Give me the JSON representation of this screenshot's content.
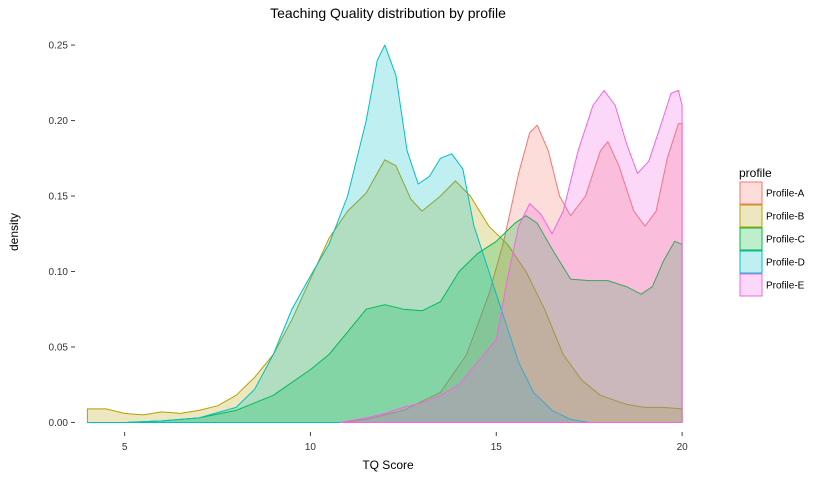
{
  "chart_data": {
    "type": "area",
    "title": "Teaching Quality distribution by profile",
    "xlabel": "TQ Score",
    "ylabel": "density",
    "xlim": [
      3.8,
      20.4
    ],
    "ylim": [
      -0.005,
      0.26
    ],
    "xticks": [
      5,
      10,
      15,
      20
    ],
    "yticks": [
      0.0,
      0.05,
      0.1,
      0.15,
      0.2,
      0.25
    ],
    "ytick_labels": [
      "0.00",
      "0.05",
      "0.10",
      "0.15",
      "0.20",
      "0.25"
    ],
    "grid": false,
    "legend": {
      "title": "profile",
      "placement": "right"
    },
    "series": [
      {
        "name": "Profile-A",
        "fill": "#F8766D",
        "stroke": "#F8766D",
        "points": [
          [
            10.8,
            0.0
          ],
          [
            11.5,
            0.002
          ],
          [
            12.5,
            0.008
          ],
          [
            13.5,
            0.02
          ],
          [
            14.2,
            0.045
          ],
          [
            14.8,
            0.085
          ],
          [
            15.2,
            0.12
          ],
          [
            15.6,
            0.165
          ],
          [
            15.9,
            0.192
          ],
          [
            16.1,
            0.197
          ],
          [
            16.4,
            0.18
          ],
          [
            16.7,
            0.15
          ],
          [
            17.0,
            0.137
          ],
          [
            17.4,
            0.15
          ],
          [
            17.8,
            0.18
          ],
          [
            18.0,
            0.186
          ],
          [
            18.3,
            0.17
          ],
          [
            18.7,
            0.14
          ],
          [
            19.0,
            0.13
          ],
          [
            19.3,
            0.14
          ],
          [
            19.6,
            0.175
          ],
          [
            19.9,
            0.198
          ],
          [
            20.0,
            0.198
          ],
          [
            20.0,
            0.0
          ]
        ]
      },
      {
        "name": "Profile-B",
        "fill": "#B79F00",
        "stroke": "#B79F00",
        "points": [
          [
            4.0,
            0.009
          ],
          [
            4.5,
            0.009
          ],
          [
            5.0,
            0.006
          ],
          [
            5.5,
            0.005
          ],
          [
            6.0,
            0.007
          ],
          [
            6.5,
            0.006
          ],
          [
            7.0,
            0.008
          ],
          [
            7.5,
            0.011
          ],
          [
            8.0,
            0.018
          ],
          [
            8.5,
            0.03
          ],
          [
            9.0,
            0.045
          ],
          [
            9.5,
            0.068
          ],
          [
            10.0,
            0.095
          ],
          [
            10.5,
            0.122
          ],
          [
            11.0,
            0.14
          ],
          [
            11.5,
            0.152
          ],
          [
            12.0,
            0.174
          ],
          [
            12.3,
            0.17
          ],
          [
            12.7,
            0.148
          ],
          [
            13.0,
            0.14
          ],
          [
            13.5,
            0.15
          ],
          [
            13.9,
            0.16
          ],
          [
            14.3,
            0.15
          ],
          [
            14.8,
            0.13
          ],
          [
            15.3,
            0.118
          ],
          [
            15.8,
            0.1
          ],
          [
            16.3,
            0.075
          ],
          [
            16.8,
            0.045
          ],
          [
            17.3,
            0.028
          ],
          [
            17.8,
            0.018
          ],
          [
            18.5,
            0.012
          ],
          [
            19.0,
            0.01
          ],
          [
            19.5,
            0.01
          ],
          [
            20.0,
            0.009
          ],
          [
            20.0,
            0.0
          ],
          [
            4.0,
            0.0
          ]
        ]
      },
      {
        "name": "Profile-C",
        "fill": "#00BA38",
        "stroke": "#00BA38",
        "points": [
          [
            5.0,
            0.0
          ],
          [
            6.0,
            0.001
          ],
          [
            7.0,
            0.003
          ],
          [
            8.0,
            0.008
          ],
          [
            9.0,
            0.018
          ],
          [
            10.0,
            0.035
          ],
          [
            10.5,
            0.045
          ],
          [
            11.0,
            0.06
          ],
          [
            11.5,
            0.075
          ],
          [
            12.0,
            0.078
          ],
          [
            12.5,
            0.075
          ],
          [
            13.0,
            0.074
          ],
          [
            13.5,
            0.08
          ],
          [
            14.0,
            0.1
          ],
          [
            14.5,
            0.112
          ],
          [
            15.0,
            0.12
          ],
          [
            15.5,
            0.132
          ],
          [
            15.8,
            0.137
          ],
          [
            16.1,
            0.132
          ],
          [
            16.5,
            0.115
          ],
          [
            17.0,
            0.095
          ],
          [
            17.5,
            0.094
          ],
          [
            18.0,
            0.094
          ],
          [
            18.5,
            0.09
          ],
          [
            18.9,
            0.085
          ],
          [
            19.2,
            0.09
          ],
          [
            19.5,
            0.107
          ],
          [
            19.8,
            0.12
          ],
          [
            20.0,
            0.118
          ],
          [
            20.0,
            0.0
          ]
        ]
      },
      {
        "name": "Profile-D",
        "fill": "#00BFC4",
        "stroke": "#00BFC4",
        "points": [
          [
            4.0,
            0.0
          ],
          [
            5.0,
            0.0
          ],
          [
            6.0,
            0.001
          ],
          [
            7.0,
            0.003
          ],
          [
            8.0,
            0.01
          ],
          [
            8.5,
            0.022
          ],
          [
            9.0,
            0.045
          ],
          [
            9.5,
            0.075
          ],
          [
            10.0,
            0.097
          ],
          [
            10.5,
            0.118
          ],
          [
            11.0,
            0.15
          ],
          [
            11.5,
            0.2
          ],
          [
            11.8,
            0.24
          ],
          [
            12.0,
            0.25
          ],
          [
            12.3,
            0.23
          ],
          [
            12.6,
            0.18
          ],
          [
            12.9,
            0.158
          ],
          [
            13.2,
            0.163
          ],
          [
            13.5,
            0.175
          ],
          [
            13.8,
            0.178
          ],
          [
            14.1,
            0.168
          ],
          [
            14.4,
            0.13
          ],
          [
            14.8,
            0.1
          ],
          [
            15.2,
            0.07
          ],
          [
            15.6,
            0.04
          ],
          [
            16.0,
            0.02
          ],
          [
            16.5,
            0.008
          ],
          [
            17.0,
            0.002
          ],
          [
            17.5,
            0.0
          ]
        ]
      },
      {
        "name": "Profile-E",
        "fill": "#F564E3",
        "stroke": "#F564E3",
        "points": [
          [
            10.8,
            0.0
          ],
          [
            11.5,
            0.003
          ],
          [
            12.0,
            0.006
          ],
          [
            12.5,
            0.01
          ],
          [
            13.0,
            0.013
          ],
          [
            13.5,
            0.018
          ],
          [
            14.0,
            0.025
          ],
          [
            14.5,
            0.04
          ],
          [
            15.0,
            0.055
          ],
          [
            15.3,
            0.095
          ],
          [
            15.6,
            0.13
          ],
          [
            15.9,
            0.145
          ],
          [
            16.2,
            0.138
          ],
          [
            16.5,
            0.125
          ],
          [
            16.8,
            0.14
          ],
          [
            17.2,
            0.18
          ],
          [
            17.6,
            0.21
          ],
          [
            17.9,
            0.22
          ],
          [
            18.2,
            0.21
          ],
          [
            18.5,
            0.185
          ],
          [
            18.8,
            0.165
          ],
          [
            19.1,
            0.173
          ],
          [
            19.4,
            0.195
          ],
          [
            19.7,
            0.218
          ],
          [
            19.9,
            0.22
          ],
          [
            20.0,
            0.21
          ],
          [
            20.0,
            0.0
          ]
        ]
      }
    ]
  }
}
